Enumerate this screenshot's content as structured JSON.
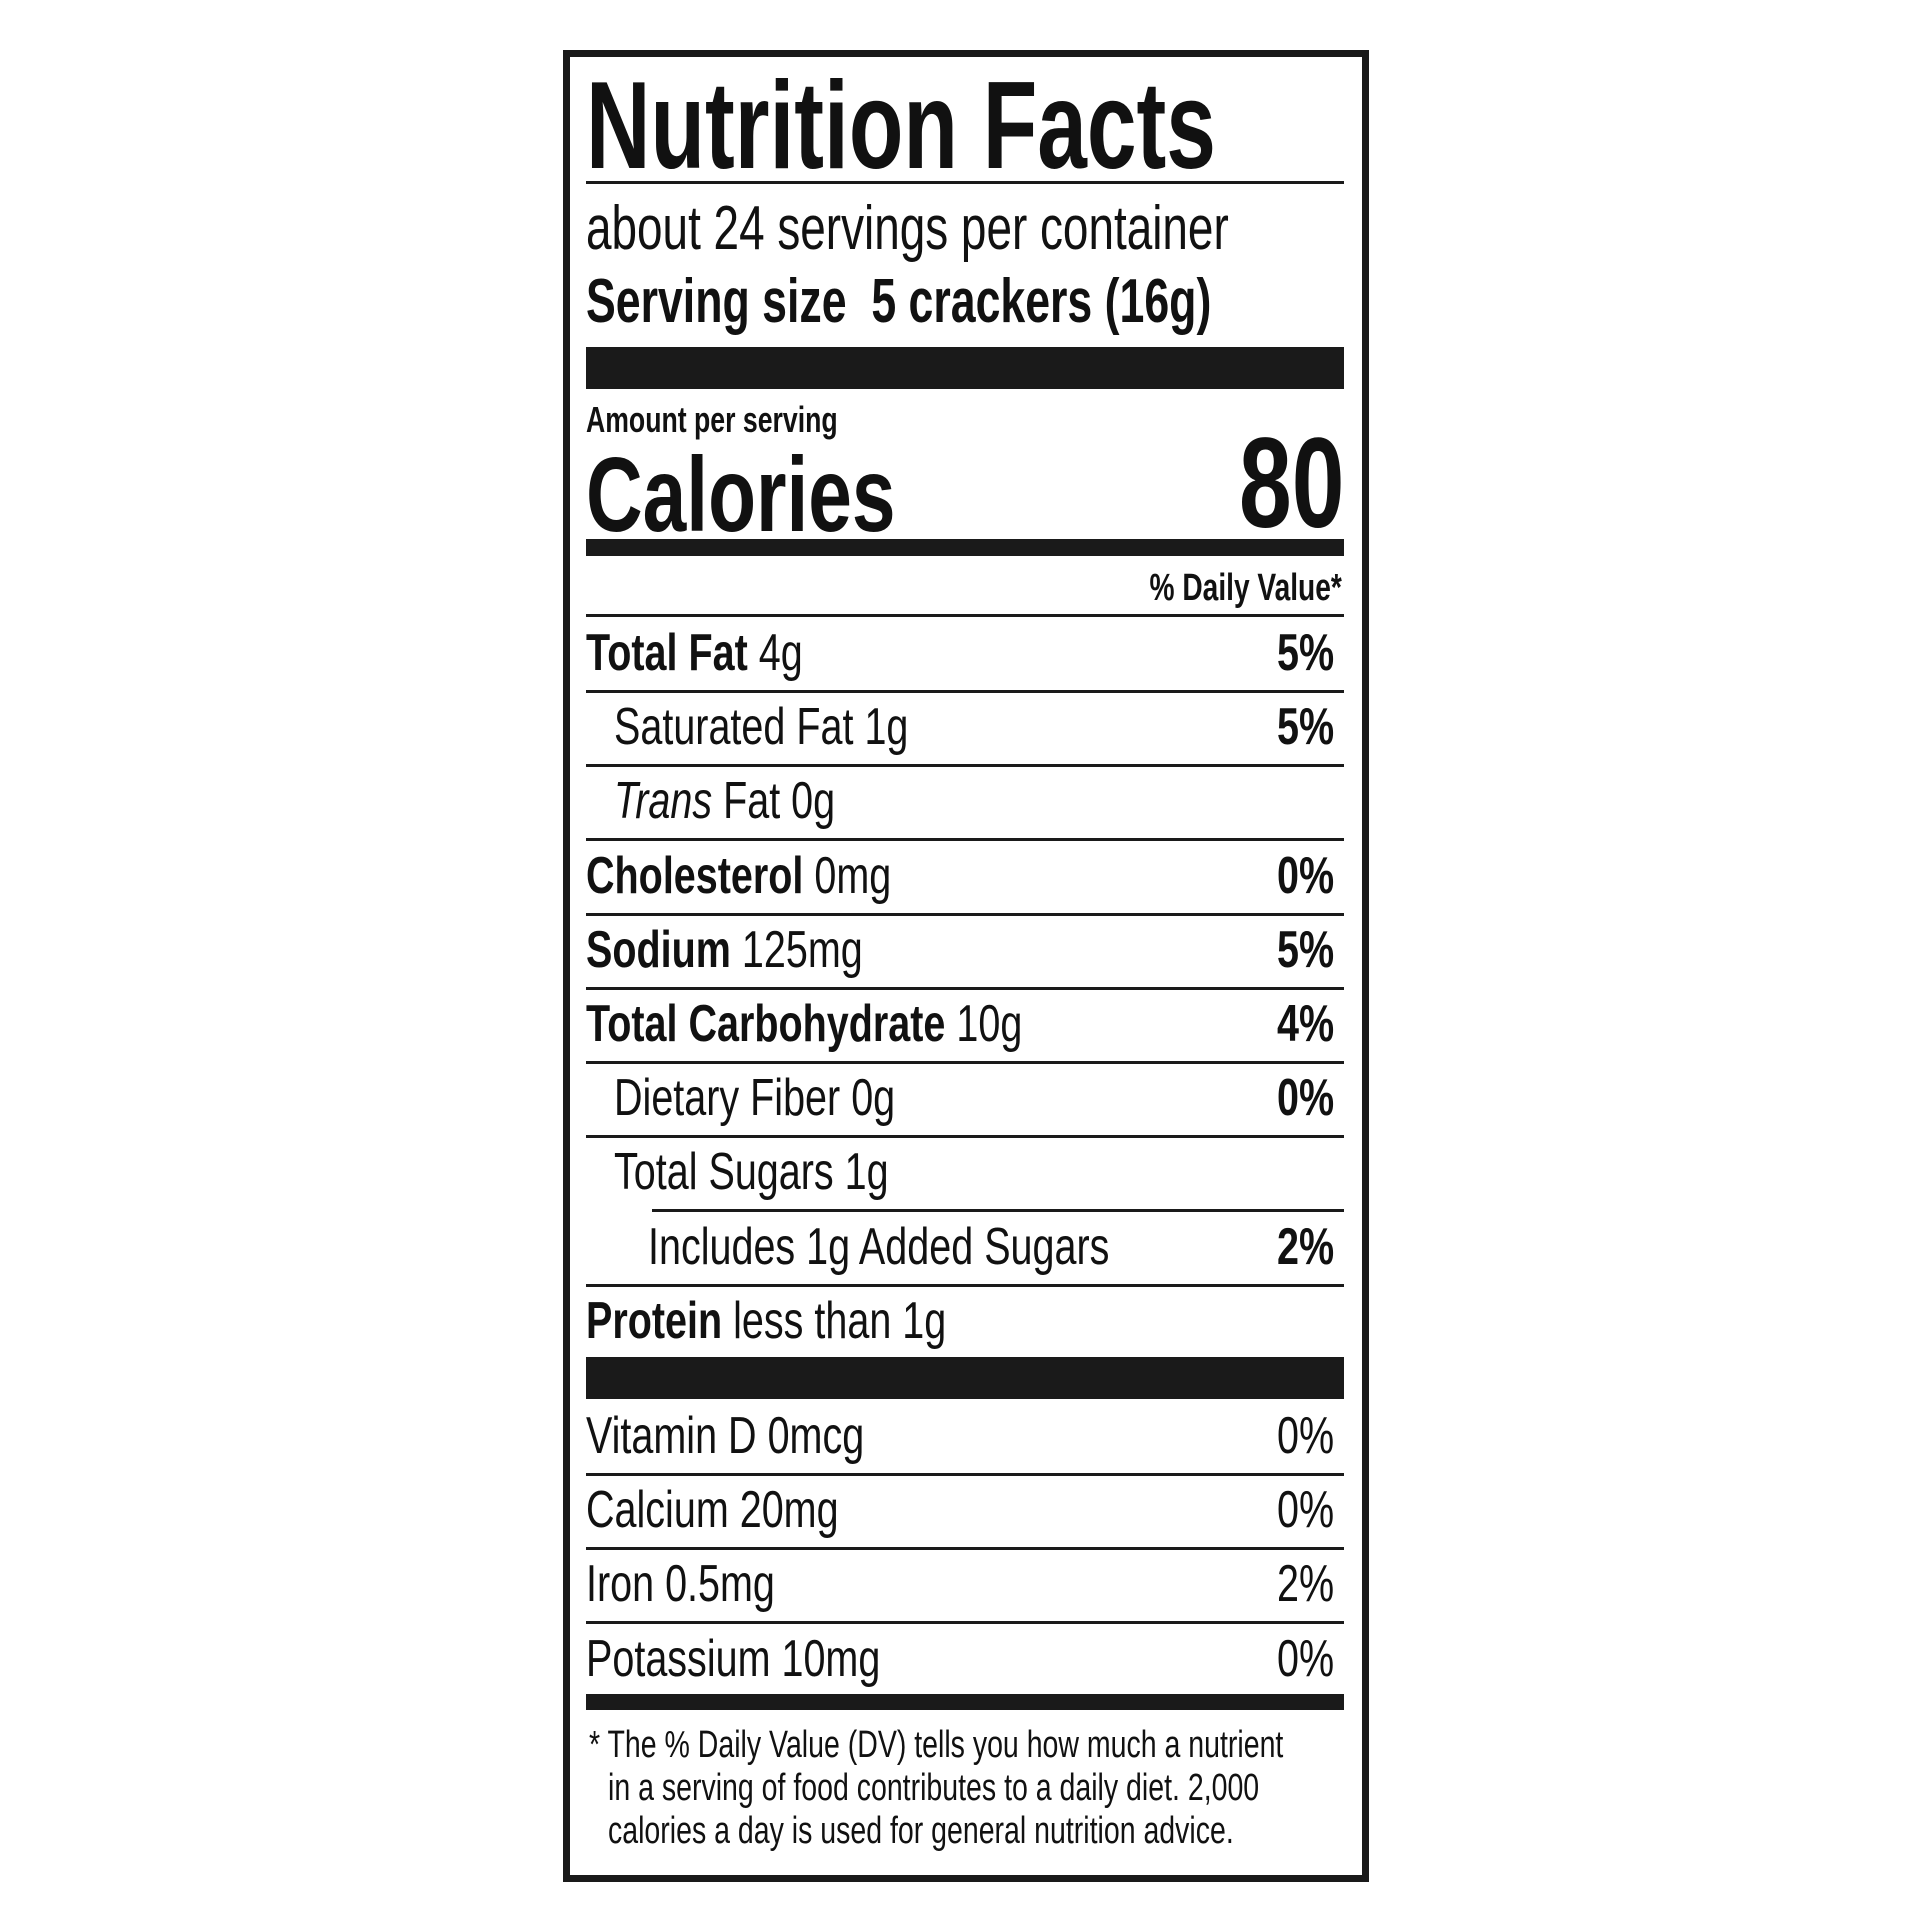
{
  "title": "Nutrition Facts",
  "servings_per_container": "about 24 servings per container",
  "serving_size_label": "Serving size",
  "serving_size_value": "5 crackers (16g)",
  "amount_per_serving": "Amount per serving",
  "calories_label": "Calories",
  "calories_value": "80",
  "daily_value_header": "% Daily Value*",
  "nutrients": [
    {
      "name": "Total Fat",
      "amount": "4g",
      "dv": "5%",
      "bold": true,
      "indent": 0
    },
    {
      "name": "Saturated Fat",
      "amount": "1g",
      "dv": "5%",
      "bold": false,
      "indent": 1
    },
    {
      "name": "Trans",
      "name_suffix": "Fat",
      "amount": "0g",
      "dv": "",
      "bold": false,
      "indent": 1,
      "italic_prefix": true
    },
    {
      "name": "Cholesterol",
      "amount": "0mg",
      "dv": "0%",
      "bold": true,
      "indent": 0
    },
    {
      "name": "Sodium",
      "amount": "125mg",
      "dv": "5%",
      "bold": true,
      "indent": 0
    },
    {
      "name": "Total Carbohydrate",
      "amount": "10g",
      "dv": "4%",
      "bold": true,
      "indent": 0
    },
    {
      "name": "Dietary Fiber",
      "amount": "0g",
      "dv": "0%",
      "bold": false,
      "indent": 1
    },
    {
      "name": "Total Sugars",
      "amount": "1g",
      "dv": "",
      "bold": false,
      "indent": 1
    },
    {
      "name": "Includes 1g Added Sugars",
      "amount": "",
      "dv": "2%",
      "bold": false,
      "indent": 2
    },
    {
      "name": "Protein",
      "amount": "less than 1g",
      "dv": "",
      "bold": true,
      "indent": 0
    }
  ],
  "vitamins": [
    {
      "name": "Vitamin D 0mcg",
      "dv": "0%"
    },
    {
      "name": "Calcium 20mg",
      "dv": "0%"
    },
    {
      "name": "Iron 0.5mg",
      "dv": "2%"
    },
    {
      "name": "Potassium 10mg",
      "dv": "0%"
    }
  ],
  "footnote": [
    "* The % Daily Value (DV) tells you how much a nutrient",
    "in a serving of food contributes to a daily diet. 2,000",
    "calories a day is used for general nutrition advice."
  ]
}
